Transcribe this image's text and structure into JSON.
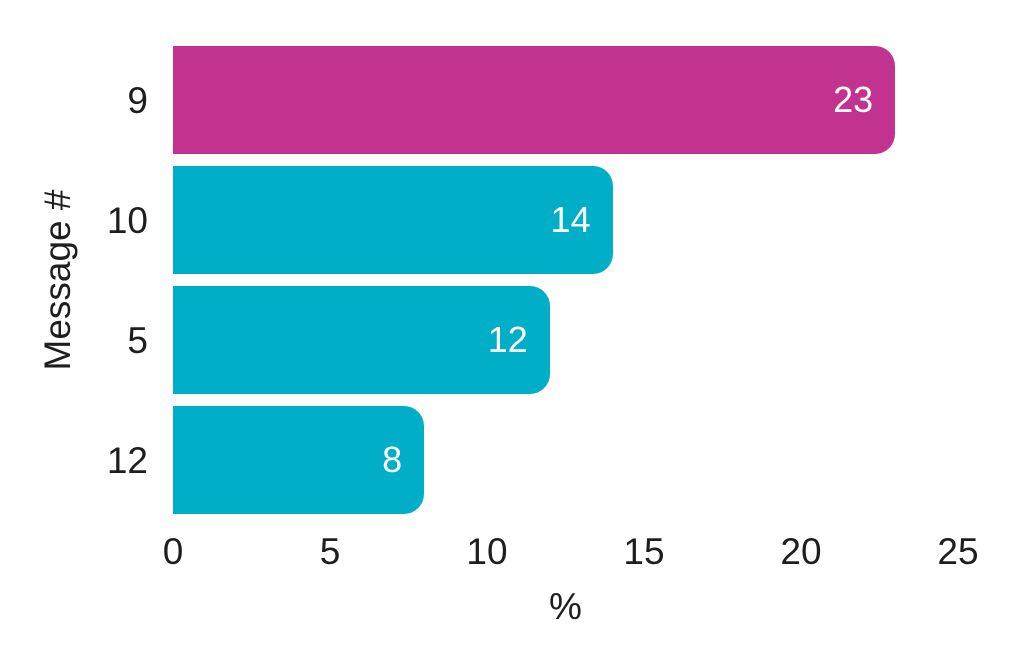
{
  "chart_data": {
    "type": "bar",
    "orientation": "horizontal",
    "title": "",
    "categories": [
      "9",
      "10",
      "5",
      "12"
    ],
    "values": [
      23,
      14,
      12,
      8
    ],
    "bar_colors": [
      "#c23390",
      "#00aec8",
      "#00aec8",
      "#00aec8"
    ],
    "highlight_color": "#c23390",
    "default_color": "#00aec8",
    "value_label_color": "#ffffff",
    "text_color": "#1e1e1e",
    "background_color": "#ffffff",
    "xlabel": "%",
    "ylabel": "Message #",
    "xlim": [
      0,
      25
    ],
    "x_ticks": [
      0,
      5,
      10,
      15,
      20,
      25
    ],
    "grid": false,
    "legend": false,
    "value_labels": "inside-end"
  }
}
